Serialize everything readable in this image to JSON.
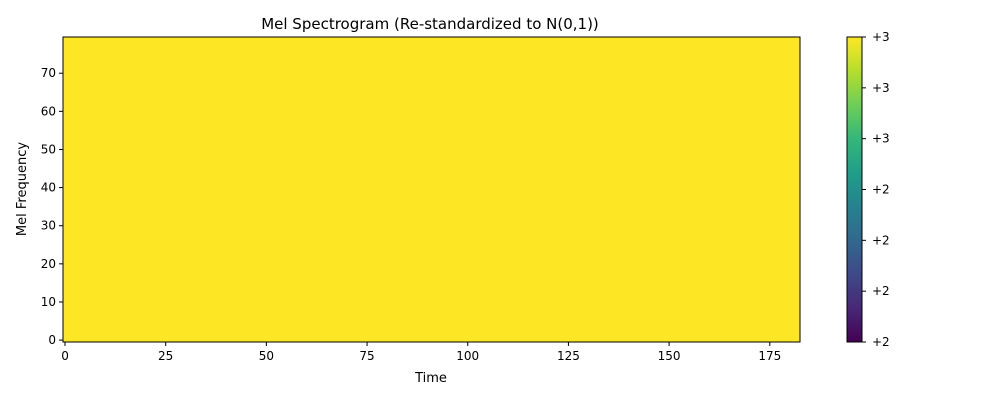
{
  "chart_data": {
    "type": "heatmap",
    "title": "Mel Spectrogram (Re-standardized to N(0,1))",
    "xlabel": "Time",
    "ylabel": "Mel Frequency",
    "xlim": [
      -0.5,
      182.5
    ],
    "ylim": [
      -0.5,
      79.5
    ],
    "x_ticks": [
      0,
      25,
      50,
      75,
      100,
      125,
      150,
      175
    ],
    "y_ticks": [
      0,
      10,
      20,
      30,
      40,
      50,
      60,
      70
    ],
    "frames": 183,
    "mel_bins": 80,
    "cell_value": 3,
    "colormap": "viridis",
    "fill_color": "#fde725",
    "grid": false,
    "colorbar": {
      "tick_labels": [
        "+2",
        "+2",
        "+2",
        "+2",
        "+3",
        "+3",
        "+3"
      ],
      "colors": [
        "#440154",
        "#482878",
        "#3e4989",
        "#31688e",
        "#26828e",
        "#1f9e89",
        "#35b779",
        "#6ece58",
        "#b5de2b",
        "#fde725"
      ]
    }
  }
}
